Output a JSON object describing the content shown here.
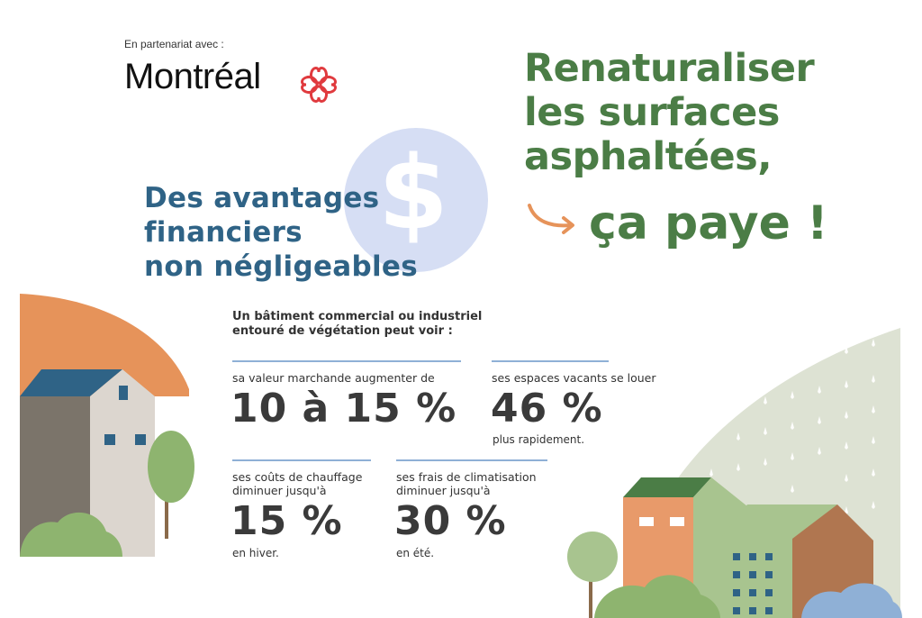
{
  "partner": {
    "label": "En partenariat avec :",
    "logo_text": "Montréal"
  },
  "main_title": {
    "lines": [
      "Renaturaliser",
      "les surfaces",
      "asphaltées,"
    ],
    "highlight": "ça paye !"
  },
  "subtitle": {
    "lines": [
      "Des avantages",
      "financiers",
      "non négligeables"
    ],
    "symbol": "$"
  },
  "intro": {
    "lines": [
      "Un bâtiment commercial ou industriel",
      "entouré de végétation peut voir :"
    ]
  },
  "stats": [
    {
      "label_lines": [
        "sa valeur marchande augmenter de"
      ],
      "value": "10 à 15 %",
      "note": ""
    },
    {
      "label_lines": [
        "ses espaces vacants se louer"
      ],
      "value": "46 %",
      "note": "plus rapidement."
    },
    {
      "label_lines": [
        "ses coûts de chauffage",
        "diminuer jusqu'à"
      ],
      "value": "15 %",
      "note": "en hiver."
    },
    {
      "label_lines": [
        "ses frais de climatisation",
        "diminuer jusqu'à"
      ],
      "value": "30 %",
      "note": "en été."
    }
  ],
  "colors": {
    "green_title": "#4b7d46",
    "blue_title": "#2f6386",
    "coin": "#d6def4",
    "orange_hill": "#e6935a",
    "sage_hill": "#dde2d3",
    "rule": "#8fb0d6"
  }
}
